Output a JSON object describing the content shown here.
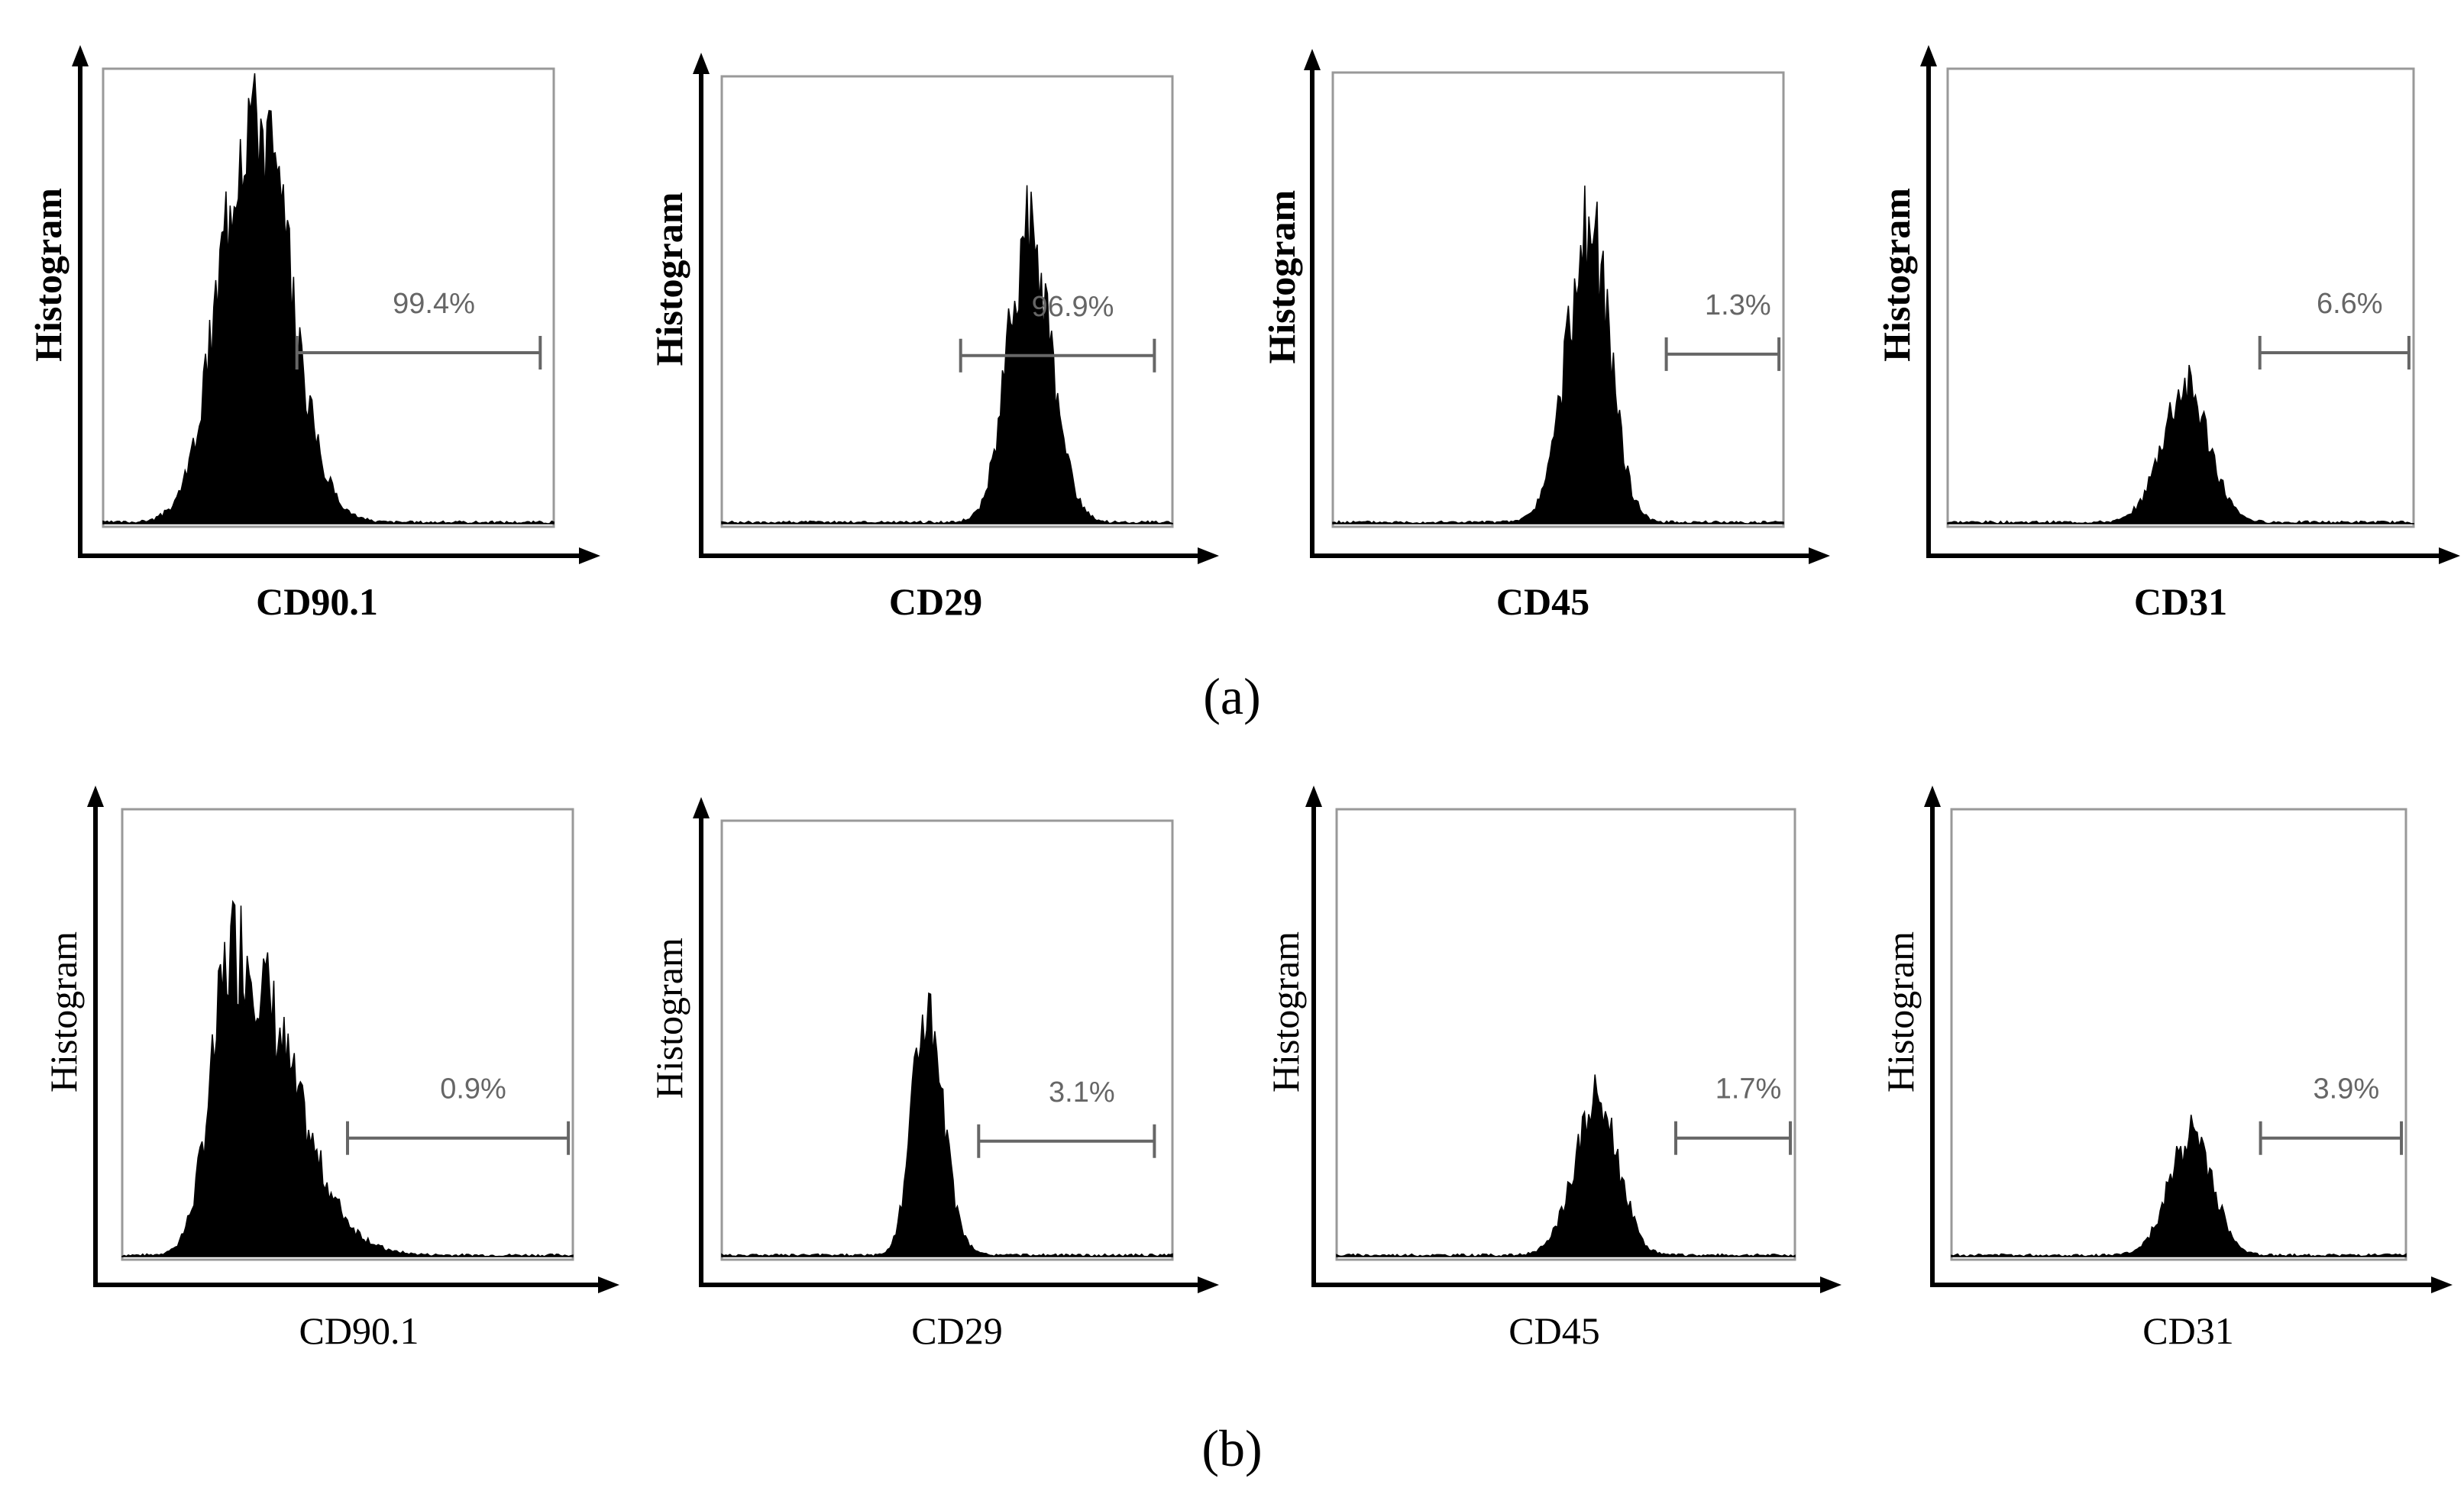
{
  "chart_data": [
    {
      "type": "histogram",
      "row": "a",
      "marker": "CD90.1",
      "xlabel": "CD90.1",
      "ylabel": "Histogram",
      "gate_label": "99.4%",
      "gate_range": [
        0.43,
        0.97
      ],
      "peak": {
        "center": 0.33,
        "width_left": 0.07,
        "width_right": 0.08,
        "height": 0.94
      }
    },
    {
      "type": "histogram",
      "row": "a",
      "marker": "CD29",
      "xlabel": "CD29",
      "ylabel": "Histogram",
      "gate_label": "96.9%",
      "gate_range": [
        0.53,
        0.96
      ],
      "peak": {
        "center": 0.68,
        "width_left": 0.045,
        "width_right": 0.05,
        "height": 0.65
      }
    },
    {
      "type": "histogram",
      "row": "a",
      "marker": "CD45",
      "xlabel": "CD45",
      "ylabel": "Histogram",
      "gate_label": "1.3%",
      "gate_range": [
        0.74,
        0.99
      ],
      "peak": {
        "center": 0.57,
        "width_left": 0.05,
        "width_right": 0.045,
        "height": 0.65
      }
    },
    {
      "type": "histogram",
      "row": "a",
      "marker": "CD31",
      "xlabel": "CD31",
      "ylabel": "Histogram",
      "gate_label": "6.6%",
      "gate_range": [
        0.67,
        0.99
      ],
      "peak": {
        "center": 0.51,
        "width_left": 0.05,
        "width_right": 0.05,
        "height": 0.3
      }
    },
    {
      "type": "histogram",
      "row": "b",
      "marker": "CD90.1",
      "xlabel": "CD90.1",
      "ylabel": "Histogram",
      "gate_label": "0.9%",
      "gate_range": [
        0.5,
        0.99
      ],
      "peak": {
        "center": 0.25,
        "width_left": 0.05,
        "width_right": 0.12,
        "height": 0.7
      }
    },
    {
      "type": "histogram",
      "row": "b",
      "marker": "CD29",
      "xlabel": "CD29",
      "ylabel": "Histogram",
      "gate_label": "3.1%",
      "gate_range": [
        0.57,
        0.96
      ],
      "peak": {
        "center": 0.45,
        "width_left": 0.03,
        "width_right": 0.04,
        "height": 0.55
      }
    },
    {
      "type": "histogram",
      "row": "b",
      "marker": "CD45",
      "xlabel": "CD45",
      "ylabel": "Histogram",
      "gate_label": "1.7%",
      "gate_range": [
        0.74,
        0.99
      ],
      "peak": {
        "center": 0.57,
        "width_left": 0.05,
        "width_right": 0.045,
        "height": 0.35
      }
    },
    {
      "type": "histogram",
      "row": "b",
      "marker": "CD31",
      "xlabel": "CD31",
      "ylabel": "Histogram",
      "gate_label": "3.9%",
      "gate_range": [
        0.68,
        0.99
      ],
      "peak": {
        "center": 0.53,
        "width_left": 0.05,
        "width_right": 0.045,
        "height": 0.27
      }
    }
  ],
  "panel_labels": {
    "a": "(a)",
    "b": "(b)"
  },
  "colors": {
    "fill": "#000000",
    "frame": "#999999",
    "gate": "#666666",
    "axis": "#000000"
  }
}
